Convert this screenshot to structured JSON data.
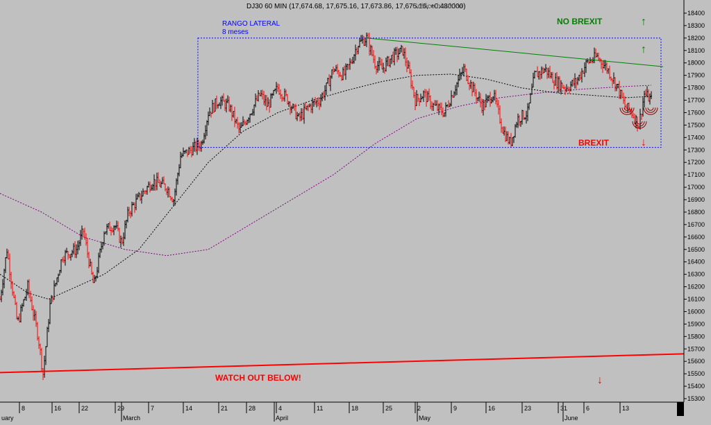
{
  "header": {
    "title": "DJ30 60 MIN (17,674.68, 17,675.16, 17,673.86, 17,675.16, +0.480000)",
    "overlay": "Gráfico histórico"
  },
  "colors": {
    "background": "#c0c0c0",
    "up_bar": "#000000",
    "down_bar": "#ff0000",
    "support_line": "#ff0000",
    "trend_line": "#008000",
    "range_box": "#0000ff",
    "ma_short": "#000000",
    "ma_long": "#800080",
    "brexit_text": "#ff0000",
    "nobrexit_text": "#008000"
  },
  "annotations": {
    "range_label_1": "RANGO LATERAL",
    "range_label_2": "8 meses",
    "no_brexit": "NO BREXIT",
    "brexit": "BREXIT",
    "watch_out": "WATCH OUT BELOW!",
    "arrow_up": "↑",
    "arrow_down": "↓"
  },
  "chart_data": {
    "type": "ohlc",
    "title": "DJ30 60 MIN (17,674.68, 17,675.16, 17,673.86, 17,675.16, +0.480000)",
    "y_axis": {
      "ylim": [
        15300,
        18450
      ],
      "ticks": [
        15300,
        15400,
        15500,
        15600,
        15700,
        15800,
        15900,
        16000,
        16100,
        16200,
        16300,
        16400,
        16500,
        16600,
        16700,
        16800,
        16900,
        17000,
        17100,
        17200,
        17300,
        17400,
        17500,
        17600,
        17700,
        17800,
        17900,
        18000,
        18100,
        18200,
        18300,
        18400
      ],
      "position": "right",
      "grid": false
    },
    "x_axis": {
      "day_ticks": [
        "8",
        "16",
        "22",
        "29",
        "7",
        "14",
        "21",
        "28",
        "4",
        "11",
        "18",
        "25",
        "2",
        "9",
        "16",
        "23",
        "31",
        "6",
        "13"
      ],
      "month_labels": [
        "uary",
        "March",
        "April",
        "May",
        "June"
      ]
    },
    "price_path": [
      [
        0,
        16100
      ],
      [
        10,
        16500
      ],
      [
        25,
        15900
      ],
      [
        40,
        16200
      ],
      [
        55,
        15800
      ],
      [
        62,
        15500
      ],
      [
        72,
        16050
      ],
      [
        90,
        16450
      ],
      [
        110,
        16500
      ],
      [
        120,
        16650
      ],
      [
        135,
        16200
      ],
      [
        150,
        16650
      ],
      [
        165,
        16700
      ],
      [
        175,
        16550
      ],
      [
        185,
        16800
      ],
      [
        205,
        16950
      ],
      [
        220,
        17050
      ],
      [
        240,
        17000
      ],
      [
        250,
        16900
      ],
      [
        260,
        17250
      ],
      [
        275,
        17300
      ],
      [
        290,
        17350
      ],
      [
        300,
        17600
      ],
      [
        315,
        17700
      ],
      [
        330,
        17650
      ],
      [
        345,
        17450
      ],
      [
        360,
        17600
      ],
      [
        375,
        17750
      ],
      [
        385,
        17650
      ],
      [
        400,
        17800
      ],
      [
        415,
        17700
      ],
      [
        430,
        17550
      ],
      [
        445,
        17650
      ],
      [
        460,
        17700
      ],
      [
        470,
        17800
      ],
      [
        480,
        17950
      ],
      [
        495,
        17900
      ],
      [
        505,
        18000
      ],
      [
        515,
        18150
      ],
      [
        528,
        18200
      ],
      [
        540,
        18000
      ],
      [
        550,
        17950
      ],
      [
        565,
        18050
      ],
      [
        580,
        18100
      ],
      [
        590,
        17900
      ],
      [
        598,
        17700
      ],
      [
        610,
        17750
      ],
      [
        625,
        17650
      ],
      [
        640,
        17600
      ],
      [
        655,
        17800
      ],
      [
        668,
        17950
      ],
      [
        680,
        17800
      ],
      [
        695,
        17650
      ],
      [
        710,
        17750
      ],
      [
        725,
        17450
      ],
      [
        735,
        17350
      ],
      [
        745,
        17550
      ],
      [
        760,
        17600
      ],
      [
        770,
        17900
      ],
      [
        785,
        17950
      ],
      [
        800,
        17850
      ],
      [
        815,
        17800
      ],
      [
        830,
        17850
      ],
      [
        845,
        18000
      ],
      [
        860,
        18050
      ],
      [
        875,
        17950
      ],
      [
        890,
        17800
      ],
      [
        900,
        17650
      ],
      [
        910,
        17600
      ],
      [
        920,
        17500
      ],
      [
        928,
        17750
      ],
      [
        938,
        17700
      ]
    ],
    "moving_average_short": [
      [
        0,
        16300
      ],
      [
        40,
        16150
      ],
      [
        70,
        16100
      ],
      [
        110,
        16200
      ],
      [
        150,
        16300
      ],
      [
        200,
        16500
      ],
      [
        250,
        16850
      ],
      [
        300,
        17200
      ],
      [
        350,
        17450
      ],
      [
        400,
        17600
      ],
      [
        450,
        17700
      ],
      [
        500,
        17780
      ],
      [
        550,
        17850
      ],
      [
        600,
        17900
      ],
      [
        650,
        17910
      ],
      [
        700,
        17870
      ],
      [
        750,
        17800
      ],
      [
        800,
        17760
      ],
      [
        850,
        17740
      ],
      [
        900,
        17720
      ],
      [
        938,
        17730
      ]
    ],
    "moving_average_long": [
      [
        0,
        16950
      ],
      [
        60,
        16800
      ],
      [
        120,
        16600
      ],
      [
        180,
        16500
      ],
      [
        240,
        16450
      ],
      [
        300,
        16500
      ],
      [
        360,
        16700
      ],
      [
        420,
        16900
      ],
      [
        480,
        17100
      ],
      [
        540,
        17350
      ],
      [
        600,
        17550
      ],
      [
        660,
        17650
      ],
      [
        720,
        17720
      ],
      [
        780,
        17760
      ],
      [
        840,
        17790
      ],
      [
        900,
        17810
      ],
      [
        938,
        17820
      ]
    ],
    "trend_line": {
      "from": [
        528,
        18200
      ],
      "to": [
        955,
        17970
      ]
    },
    "support_line": {
      "from": [
        0,
        15510
      ],
      "to": [
        985,
        15660
      ]
    },
    "range_box": {
      "x0": 285,
      "x1": 952,
      "y_top": 18200,
      "y_bottom": 17320
    }
  }
}
